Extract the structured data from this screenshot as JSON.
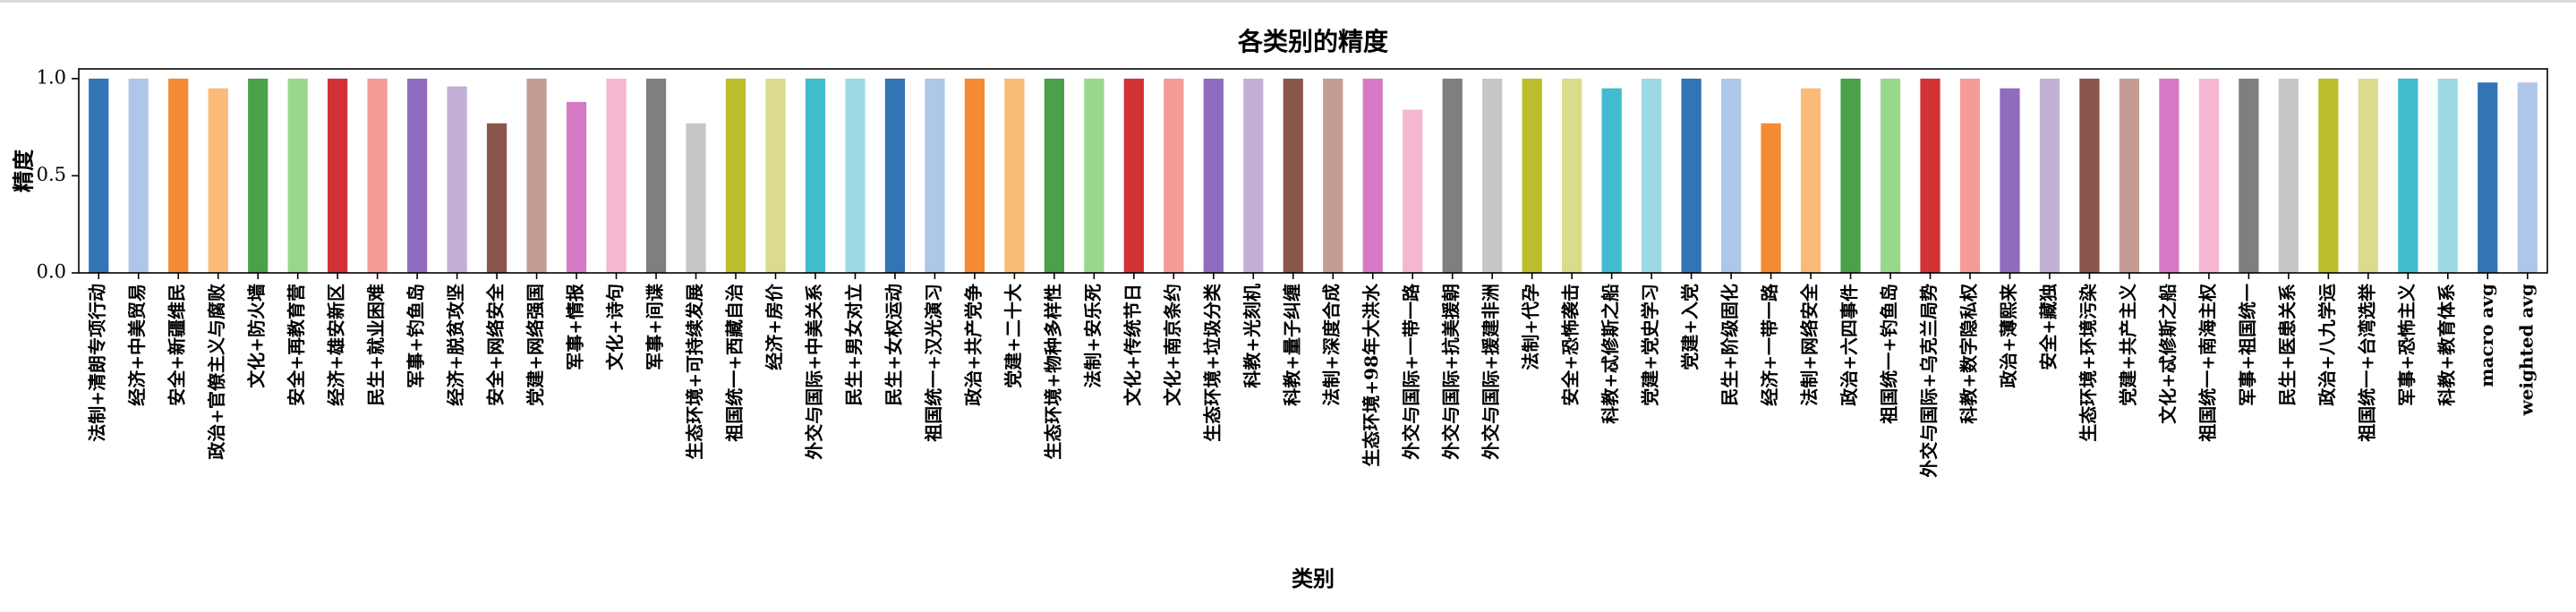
{
  "chart_data": {
    "type": "bar",
    "title": "各类别的精度",
    "xlabel": "类别",
    "ylabel": "精度",
    "ylim": [
      0,
      1.05
    ],
    "yticks": [
      0.0,
      0.5,
      1.0
    ],
    "ytick_labels": [
      "0.0",
      "0.5",
      "1.0"
    ],
    "grid": false,
    "categories": [
      "法制+清朗专项行动",
      "经济+中美贸易",
      "安全+新疆维民",
      "政治+官僚主义与腐败",
      "文化+防火墙",
      "安全+再教育营",
      "经济+雄安新区",
      "民生+就业困难",
      "军事+钓鱼岛",
      "经济+脱贫攻坚",
      "安全+网络安全",
      "党建+网络强国",
      "军事+情报",
      "文化+诗句",
      "军事+间谍",
      "生态环境+可持续发展",
      "祖国统一+西藏自治",
      "经济+房价",
      "外交与国际+中美关系",
      "民生+男女对立",
      "民生+女权运动",
      "祖国统一+汉光演习",
      "政治+共产党争",
      "党建+二十大",
      "生态环境+物种多样性",
      "法制+安乐死",
      "文化+传统节日",
      "文化+南京条约",
      "生态环境+垃圾分类",
      "科教+光刻机",
      "科教+量子纠缠",
      "法制+深度合成",
      "生态环境+98年大洪水",
      "外交与国际+一带一路",
      "外交与国际+抗美援朝",
      "外交与国际+援建非洲",
      "法制+代孕",
      "安全+恐怖袭击",
      "科教+忒修斯之船",
      "党建+党史学习",
      "党建+入党",
      "民生+阶级固化",
      "经济+一带一路",
      "法制+网络安全",
      "政治+六四事件",
      "祖国统一+钓鱼岛",
      "外交与国际+乌克兰局势",
      "科教+数字隐私权",
      "政治+薄熙来",
      "安全+藏独",
      "生态环境+环境污染",
      "党建+共产主义",
      "文化+忒修斯之船",
      "祖国统一+南海主权",
      "军事+祖国统一",
      "民生+医患关系",
      "政治+八九学运",
      "祖国统一+台湾选举",
      "军事+恐怖主义",
      "科教+教育体系",
      "macro avg",
      "weighted avg"
    ],
    "values": [
      1.0,
      1.0,
      1.0,
      0.95,
      1.0,
      1.0,
      1.0,
      1.0,
      1.0,
      0.96,
      0.77,
      1.0,
      0.88,
      1.0,
      1.0,
      0.77,
      1.0,
      1.0,
      1.0,
      1.0,
      1.0,
      1.0,
      1.0,
      1.0,
      1.0,
      1.0,
      1.0,
      1.0,
      1.0,
      1.0,
      1.0,
      1.0,
      1.0,
      0.84,
      1.0,
      1.0,
      1.0,
      1.0,
      0.95,
      1.0,
      1.0,
      1.0,
      0.77,
      0.95,
      1.0,
      1.0,
      1.0,
      1.0,
      0.95,
      1.0,
      1.0,
      1.0,
      1.0,
      1.0,
      1.0,
      1.0,
      1.0,
      1.0,
      1.0,
      1.0,
      0.98,
      0.98
    ],
    "colors": [
      "#3274b4",
      "#aec7e8",
      "#f58a34",
      "#fabb78",
      "#4aa14a",
      "#99d88c",
      "#d23236",
      "#f59b98",
      "#8f6cbd",
      "#c3b0d5",
      "#8b564c",
      "#c49c94",
      "#d77ac5",
      "#f5b6d2",
      "#7f7f7f",
      "#c7c7c7",
      "#bcbd2d",
      "#dbdb8d",
      "#40bcce",
      "#9edae5"
    ]
  }
}
